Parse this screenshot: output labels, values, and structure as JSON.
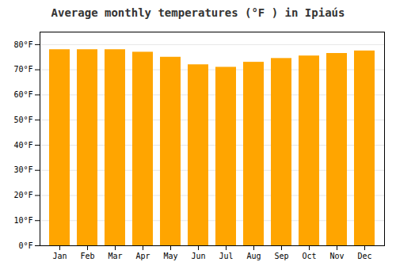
{
  "chart_data": {
    "type": "bar",
    "title": "Average monthly temperatures (°F ) in Ipiaús",
    "categories": [
      "Jan",
      "Feb",
      "Mar",
      "Apr",
      "May",
      "Jun",
      "Jul",
      "Aug",
      "Sep",
      "Oct",
      "Nov",
      "Dec"
    ],
    "values": [
      78,
      78,
      78,
      77,
      75,
      72,
      71,
      73,
      74.5,
      75.5,
      76.5,
      77.5
    ],
    "color": "#FFA500",
    "ylim": [
      0,
      85
    ],
    "yticks": [
      {
        "value": 0,
        "label": "0°F"
      },
      {
        "value": 10,
        "label": "10°F"
      },
      {
        "value": 20,
        "label": "20°F"
      },
      {
        "value": 30,
        "label": "30°F"
      },
      {
        "value": 40,
        "label": "40°F"
      },
      {
        "value": 50,
        "label": "50°F"
      },
      {
        "value": 60,
        "label": "60°F"
      },
      {
        "value": 70,
        "label": "70°F"
      },
      {
        "value": 80,
        "label": "80°F"
      }
    ],
    "grid": true
  }
}
